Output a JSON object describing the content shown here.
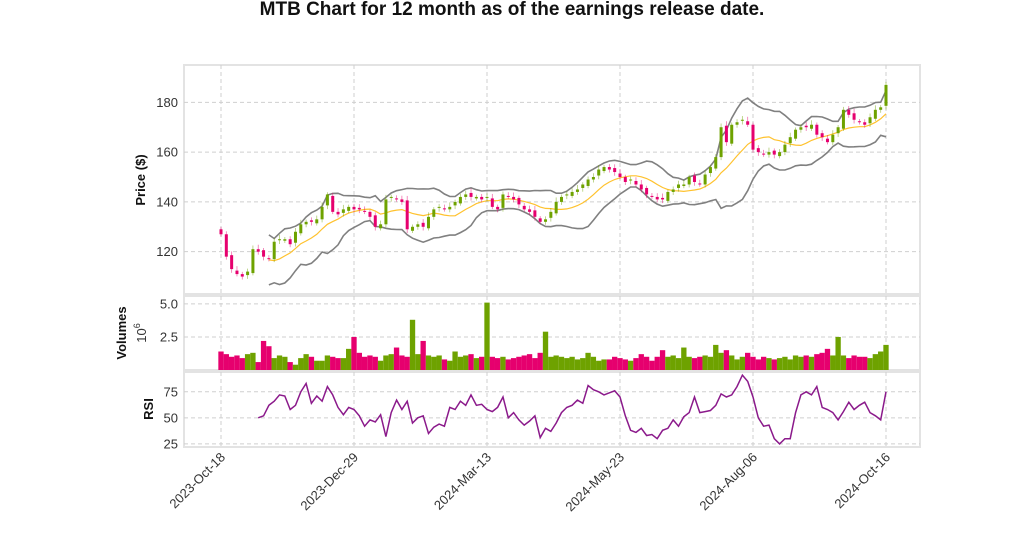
{
  "chart_data": {
    "type": "candlestick",
    "title": "MTB Chart for 12 month as of the earnings release date.",
    "x_tick_labels": [
      "2023-Oct-18",
      "2023-Dec-29",
      "2024-Mar-13",
      "2024-May-23",
      "2024-Aug-06",
      "2024-Oct-16"
    ],
    "panels": {
      "price": {
        "ylabel": "Price ($)",
        "yticks": [
          120,
          140,
          160,
          180
        ],
        "ylim": [
          103,
          195
        ]
      },
      "volume": {
        "ylabel": "Volumes",
        "offset_label": "10^6",
        "yticks": [
          2.5,
          5.0
        ],
        "ylim": [
          0,
          5.6
        ]
      },
      "rsi": {
        "ylabel": "RSI",
        "yticks": [
          25,
          50,
          75
        ],
        "ylim": [
          22,
          94
        ]
      }
    },
    "close": [
      127,
      118,
      113,
      111,
      110,
      112,
      121,
      120,
      118,
      117,
      124,
      125,
      125,
      123,
      128,
      131,
      132,
      132,
      133,
      138,
      143,
      136,
      135,
      137,
      138,
      137,
      137,
      136,
      134,
      130,
      131,
      141,
      142,
      141,
      140,
      129,
      130,
      131,
      130,
      134,
      137,
      138,
      137,
      138,
      140,
      142,
      143,
      142,
      142,
      141,
      142,
      138,
      137,
      143,
      142,
      141,
      139,
      137,
      136,
      134,
      132,
      133,
      136,
      140,
      142,
      143,
      144,
      145,
      147,
      149,
      150,
      153,
      154,
      153,
      152,
      150,
      148,
      149,
      147,
      145,
      143,
      142,
      141,
      141,
      144,
      145,
      147,
      147,
      150,
      148,
      147,
      151,
      154,
      158,
      170,
      164,
      171,
      172,
      173,
      171,
      161,
      160,
      159,
      160,
      159,
      160,
      163,
      166,
      169,
      170,
      170,
      171,
      167,
      166,
      164,
      167,
      170,
      177,
      175,
      173,
      172,
      171,
      174,
      177,
      178,
      187
    ],
    "volume_millions": [
      1.4,
      1.2,
      1.0,
      1.1,
      0.9,
      1.2,
      1.3,
      0.6,
      2.2,
      1.8,
      0.9,
      1.1,
      1.0,
      0.6,
      0.4,
      0.9,
      1.2,
      1.0,
      0.7,
      0.7,
      1.1,
      1.0,
      0.9,
      0.9,
      1.6,
      2.5,
      1.3,
      1.0,
      1.1,
      1.0,
      0.7,
      1.1,
      1.2,
      1.7,
      1.1,
      1.0,
      3.8,
      1.2,
      2.2,
      1.1,
      1.0,
      1.1,
      0.8,
      0.7,
      1.4,
      1.0,
      1.1,
      1.2,
      0.9,
      1.0,
      5.1,
      1.0,
      0.9,
      1.0,
      0.8,
      0.9,
      1.0,
      1.1,
      1.2,
      0.9,
      1.3,
      2.9,
      1.0,
      1.1,
      1.0,
      0.9,
      1.0,
      0.8,
      0.9,
      1.3,
      1.0,
      0.7,
      0.8,
      0.8,
      1.0,
      0.9,
      0.8,
      0.7,
      0.9,
      1.2,
      1.0,
      0.7,
      1.0,
      1.5,
      1.0,
      1.1,
      0.9,
      1.7,
      1.0,
      0.9,
      1.0,
      1.1,
      1.0,
      1.9,
      1.3,
      1.5,
      1.1,
      0.8,
      1.0,
      1.3,
      1.0,
      0.8,
      1.0,
      0.9,
      0.8,
      0.9,
      1.0,
      0.8,
      1.1,
      1.0,
      1.1,
      1.0,
      1.2,
      1.3,
      1.6,
      1.1,
      2.5,
      1.1,
      0.9,
      1.1,
      1.0,
      1.0,
      0.9,
      1.2,
      1.4,
      1.9
    ],
    "rsi": [
      null,
      null,
      null,
      null,
      null,
      null,
      null,
      50,
      52,
      62,
      66,
      72,
      71,
      58,
      62,
      75,
      83,
      64,
      71,
      66,
      80,
      72,
      60,
      53,
      60,
      58,
      52,
      42,
      48,
      46,
      53,
      32,
      55,
      67,
      58,
      66,
      45,
      50,
      52,
      35,
      41,
      44,
      42,
      60,
      58,
      66,
      62,
      72,
      62,
      63,
      58,
      56,
      60,
      70,
      50,
      55,
      48,
      43,
      47,
      52,
      31,
      40,
      37,
      45,
      55,
      60,
      62,
      67,
      64,
      81,
      77,
      75,
      72,
      74,
      76,
      70,
      52,
      38,
      36,
      40,
      33,
      34,
      30,
      38,
      40,
      48,
      42,
      51,
      55,
      70,
      55,
      56,
      57,
      62,
      73,
      70,
      72,
      80,
      91,
      85,
      70,
      50,
      42,
      43,
      30,
      25,
      30,
      30,
      55,
      72,
      75,
      72,
      80,
      60,
      58,
      55,
      48,
      56,
      65,
      58,
      62,
      65,
      55,
      52,
      48,
      75
    ],
    "colors": {
      "up": "#6ea200",
      "down": "#e6006e",
      "sma": "#ffc22e",
      "bands": "#808080",
      "rsi": "#8b1a8b"
    },
    "overlays": [
      "Bollinger Bands",
      "Moving Average"
    ],
    "grid": true
  }
}
